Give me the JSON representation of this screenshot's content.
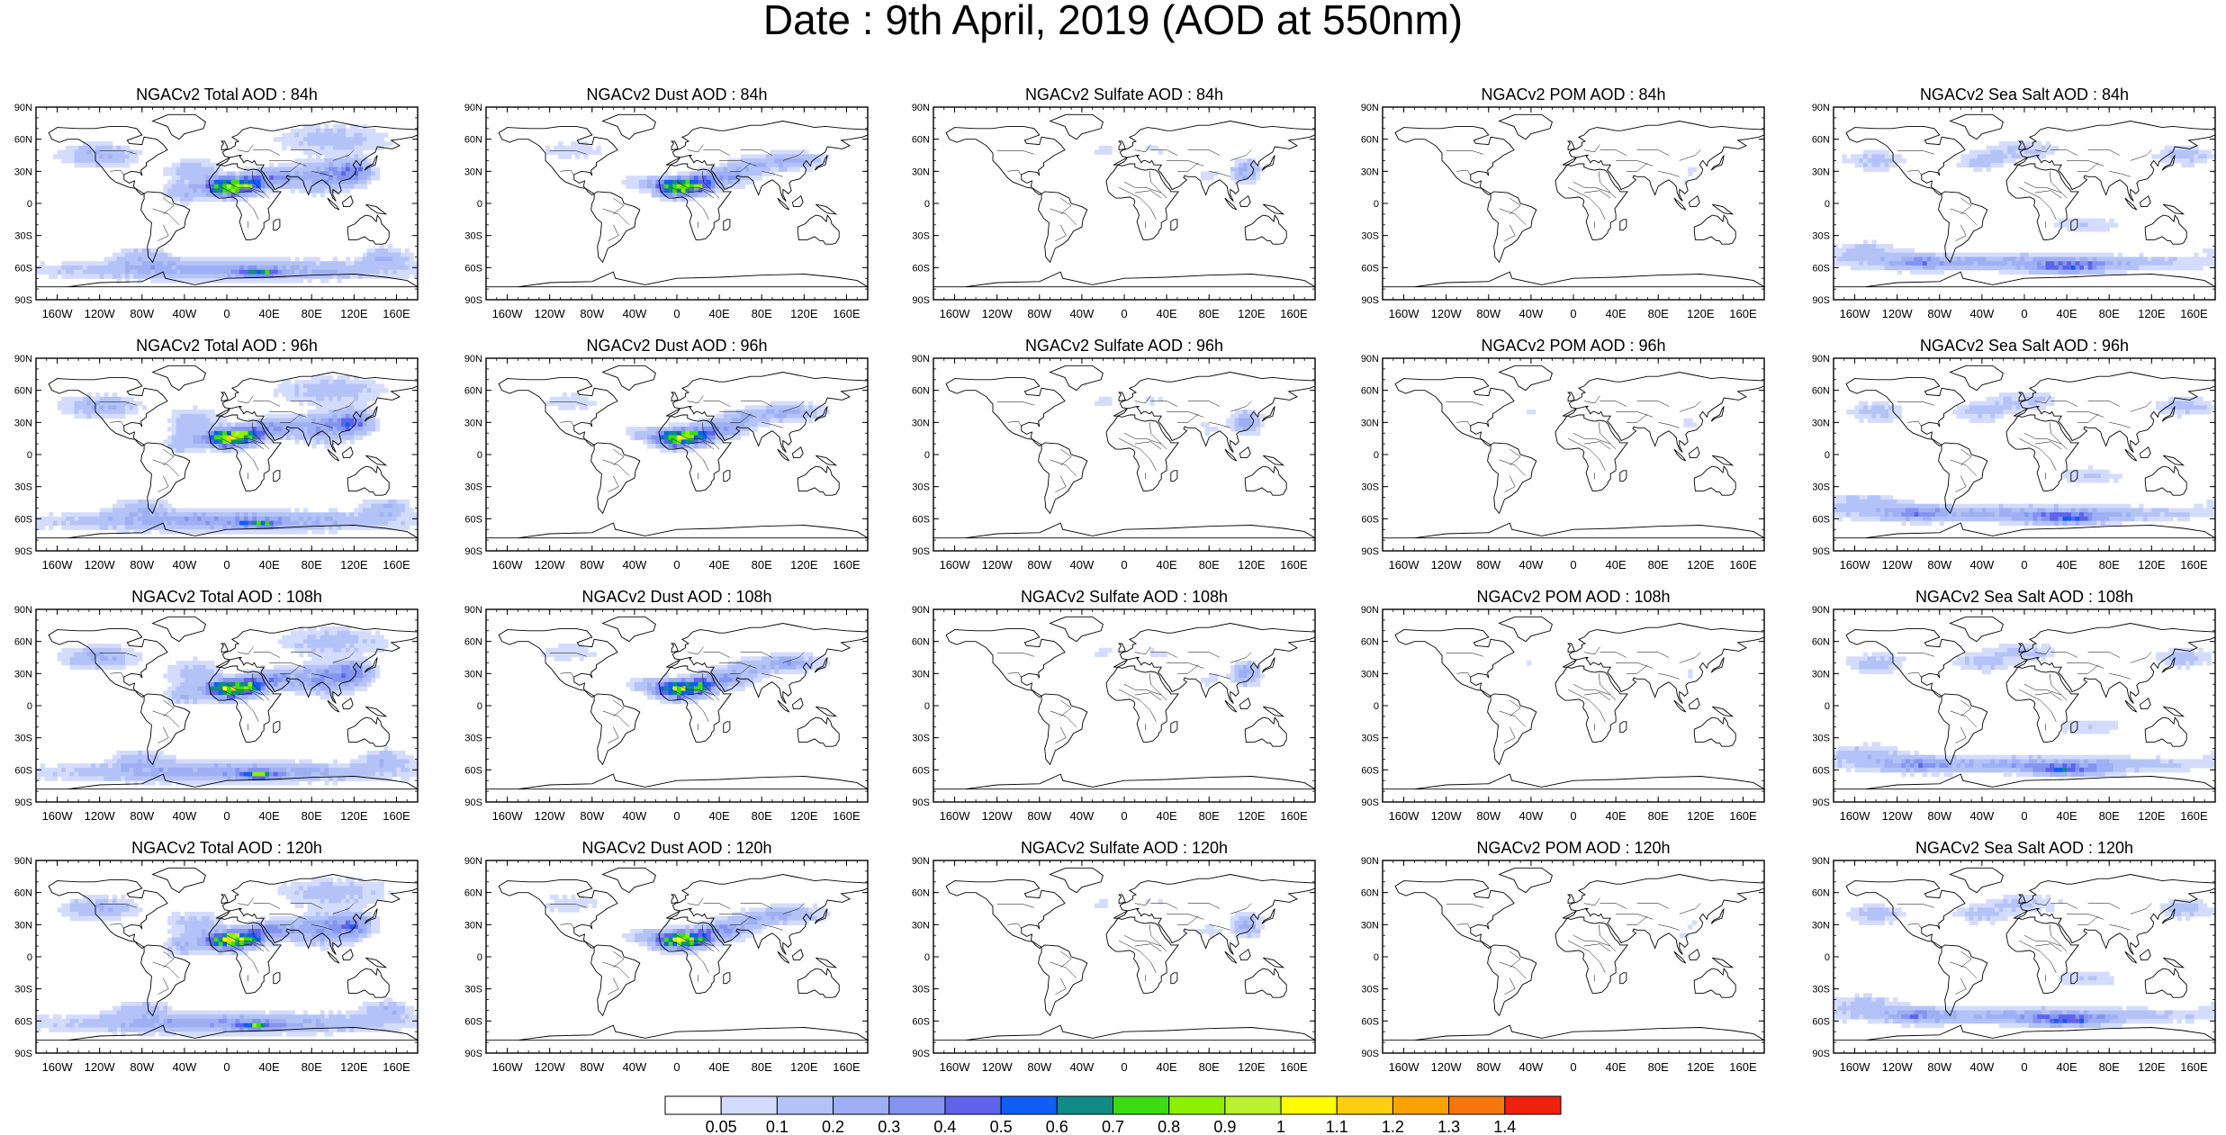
{
  "title": "Date : 9th April, 2019 (AOD at 550nm)",
  "columns": [
    {
      "name": "NGACv2 Total AOD",
      "key": "total"
    },
    {
      "name": "NGACv2 Dust AOD",
      "key": "dust"
    },
    {
      "name": "NGACv2 Sulfate AOD",
      "key": "sulfate"
    },
    {
      "name": "NGACv2 POM AOD",
      "key": "pom"
    },
    {
      "name": "NGACv2 Sea Salt AOD",
      "key": "seasalt"
    }
  ],
  "panels": [
    [
      "NGACv2 Total AOD : 84h",
      "NGACv2 Dust AOD : 84h",
      "NGACv2 Sulfate AOD : 84h",
      "NGACv2 POM AOD : 84h",
      "NGACv2 Sea Salt AOD : 84h"
    ],
    [
      "NGACv2 Total AOD : 96h",
      "NGACv2 Dust AOD : 96h",
      "NGACv2 Sulfate AOD : 96h",
      "NGACv2 POM AOD : 96h",
      "NGACv2 Sea Salt AOD : 96h"
    ],
    [
      "NGACv2 Total AOD : 108h",
      "NGACv2 Dust AOD : 108h",
      "NGACv2 Sulfate AOD : 108h",
      "NGACv2 POM AOD : 108h",
      "NGACv2 Sea Salt AOD : 108h"
    ],
    [
      "NGACv2 Total AOD : 120h",
      "NGACv2 Dust AOD : 120h",
      "NGACv2 Sulfate AOD : 120h",
      "NGACv2 POM AOD : 120h",
      "NGACv2 Sea Salt  AOD : 120h"
    ]
  ],
  "lat_ticks": [
    "90N",
    "60N",
    "30N",
    "0",
    "30S",
    "60S",
    "90S"
  ],
  "lon_ticks": [
    "160W",
    "120W",
    "80W",
    "40W",
    "0",
    "40E",
    "80E",
    "120E",
    "160E"
  ],
  "lon_tick_values": [
    -160,
    -120,
    -80,
    -40,
    0,
    40,
    80,
    120,
    160
  ],
  "lat_tick_values": [
    90,
    60,
    30,
    0,
    -30,
    -60,
    -90
  ],
  "colorbar": {
    "labels": [
      "0.05",
      "0.1",
      "0.2",
      "0.3",
      "0.4",
      "0.5",
      "0.6",
      "0.7",
      "0.8",
      "0.9",
      "1",
      "1.1",
      "1.2",
      "1.3",
      "1.4"
    ],
    "colors": [
      "#ffffff",
      "#d4dcfd",
      "#b4c3f7",
      "#9eb0f3",
      "#8394f1",
      "#5f63ec",
      "#0f5ef5",
      "#108b86",
      "#3bdc12",
      "#8cf000",
      "#b9f22f",
      "#fffb00",
      "#fccd10",
      "#faa202",
      "#f6770d",
      "#f0210d"
    ]
  },
  "colors": {
    "land_outline": "#000000",
    "background": "#ffffff"
  }
}
